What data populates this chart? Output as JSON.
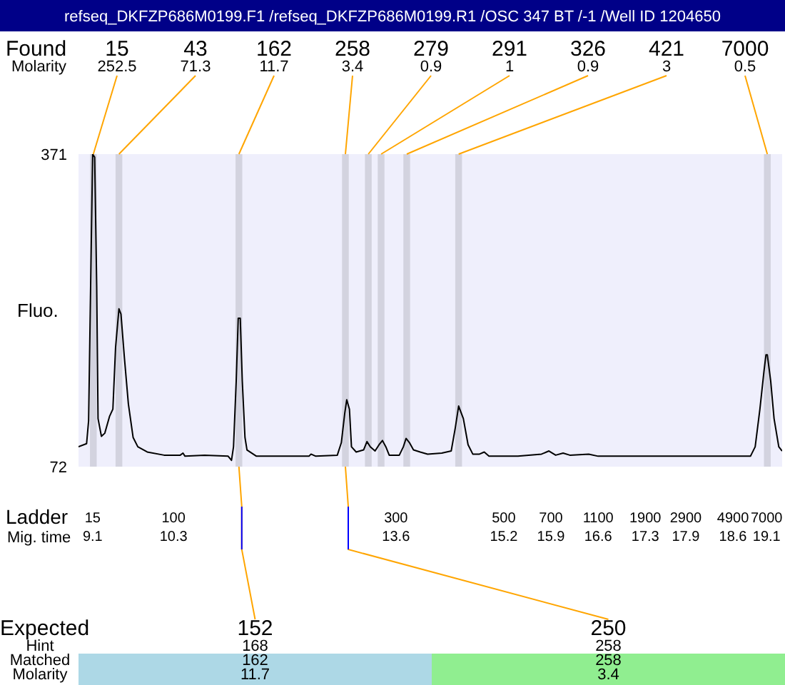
{
  "chart_data": {
    "type": "line",
    "title": "refseq_DKFZP686M0199.F1 /refseq_DKFZP686M0199.R1 /OSC 347 BT /-1 /Well ID 1204650",
    "ylabel": "Fluo.",
    "xlabel": "Mig. time",
    "color": "#000000",
    "marker": "none",
    "line_style": "solid",
    "x": [
      8.89,
      9.01,
      9.04,
      9.07,
      9.1,
      9.13,
      9.16,
      9.18,
      9.23,
      9.28,
      9.35,
      9.4,
      9.44,
      9.49,
      9.52,
      9.57,
      9.63,
      9.7,
      9.77,
      9.91,
      10.16,
      10.4,
      10.44,
      10.47,
      10.76,
      11.11,
      11.16,
      11.19,
      11.23,
      11.26,
      11.29,
      11.32,
      11.36,
      11.39,
      11.53,
      11.95,
      12.31,
      12.34,
      12.41,
      12.73,
      12.79,
      12.84,
      12.87,
      12.91,
      12.94,
      13.01,
      13.12,
      13.17,
      13.22,
      13.29,
      13.35,
      13.4,
      13.45,
      13.5,
      13.65,
      13.71,
      13.75,
      13.8,
      13.86,
      13.96,
      14.07,
      14.28,
      14.42,
      14.48,
      14.53,
      14.6,
      14.67,
      14.74,
      14.84,
      14.91,
      14.98,
      15.41,
      15.76,
      15.87,
      15.97,
      16.08,
      16.18,
      16.46,
      16.6,
      17.17,
      18.86,
      18.93,
      19.0,
      19.06,
      19.09,
      19.11,
      19.16,
      19.21,
      19.28,
      19.33
    ],
    "values": [
      91,
      94,
      116,
      245,
      371,
      368,
      245,
      118,
      101,
      104,
      120,
      127,
      186,
      223,
      218,
      177,
      132,
      100,
      91,
      86,
      83,
      83,
      85,
      82,
      83,
      82,
      78,
      91,
      154,
      214,
      214,
      154,
      100,
      88,
      82,
      82,
      82,
      84,
      82,
      83,
      95,
      123,
      136,
      127,
      91,
      86,
      88,
      96,
      91,
      87,
      93,
      97,
      91,
      83,
      83,
      91,
      99,
      95,
      88,
      86,
      84,
      85,
      87,
      109,
      130,
      118,
      93,
      84,
      84,
      86,
      82,
      82,
      84,
      87,
      83,
      85,
      83,
      84,
      82,
      82,
      82,
      91,
      127,
      163,
      179,
      179,
      154,
      118,
      91,
      87
    ],
    "xlim": [
      8.89,
      19.33
    ],
    "xticks": [
      9.1,
      10.3,
      13.6,
      15.2,
      15.9,
      16.6,
      17.3,
      17.9,
      18.6,
      19.1
    ],
    "ylim": [
      72,
      371
    ],
    "yticks": [
      72,
      371
    ],
    "bands": [
      {
        "axis": "x",
        "from": 9.06,
        "to": 9.16,
        "label": "15",
        "color": "#d3d3df"
      },
      {
        "axis": "x",
        "from": 9.44,
        "to": 9.54,
        "label": "43",
        "color": "#d3d3df"
      },
      {
        "axis": "x",
        "from": 11.22,
        "to": 11.32,
        "label": "162",
        "color": "#d3d3df"
      },
      {
        "axis": "x",
        "from": 12.8,
        "to": 12.9,
        "label": "258",
        "color": "#d3d3df"
      },
      {
        "axis": "x",
        "from": 13.14,
        "to": 13.24,
        "label": "279",
        "color": "#d3d3df"
      },
      {
        "axis": "x",
        "from": 13.33,
        "to": 13.43,
        "label": "291",
        "color": "#d3d3df"
      },
      {
        "axis": "x",
        "from": 13.71,
        "to": 13.81,
        "label": "326",
        "color": "#d3d3df"
      },
      {
        "axis": "x",
        "from": 14.48,
        "to": 14.58,
        "label": "421",
        "color": "#d3d3df"
      },
      {
        "axis": "x",
        "from": 19.06,
        "to": 19.16,
        "label": "7000",
        "color": "#d3d3df"
      }
    ],
    "annotations": [
      "Found",
      "Molarity",
      "Expected",
      "Hint",
      "Matched",
      "Molarity",
      "Ladder",
      "15",
      "100",
      "300",
      "500",
      "700",
      "1100",
      "1900",
      "2900",
      "4900",
      "7000",
      {
        "text": "252.5",
        "x": 9.11,
        "y": 371
      },
      {
        "text": "71.3",
        "x": 9.49,
        "y": 371
      },
      {
        "text": "11.7",
        "x": 11.27,
        "y": 371
      },
      {
        "text": "3.4",
        "x": 12.85,
        "y": 371
      },
      {
        "text": "0.9",
        "x": 13.19,
        "y": 371
      },
      {
        "text": "1",
        "x": 13.38,
        "y": 371
      },
      {
        "text": "0.9",
        "x": 13.76,
        "y": 371
      },
      {
        "text": "3",
        "x": 14.53,
        "y": 371
      },
      {
        "text": "0.5",
        "x": 19.11,
        "y": 371
      },
      {
        "text": "152",
        "x": 11.27,
        "y": 72
      },
      "168",
      "162",
      "11.7",
      {
        "text": "250",
        "x": 12.85,
        "y": 72
      },
      "258",
      "258",
      "3.4"
    ]
  }
}
